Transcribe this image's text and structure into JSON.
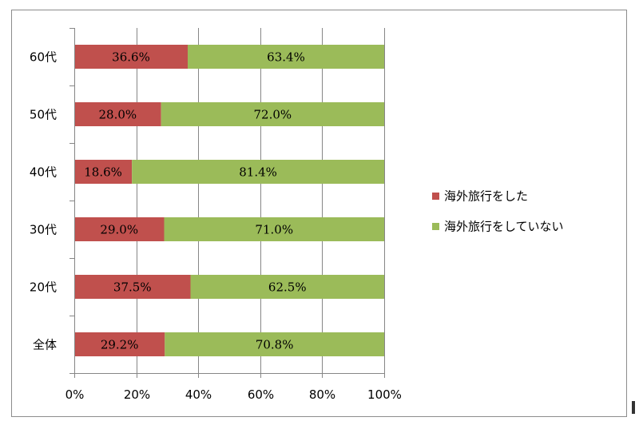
{
  "chart_data": {
    "type": "bar",
    "orientation": "horizontal",
    "stacked": "percent",
    "categories": [
      "60代",
      "50代",
      "40代",
      "30代",
      "20代",
      "全体"
    ],
    "series": [
      {
        "name": "海外旅行をした",
        "color": "#c0504d",
        "values": [
          36.6,
          28.0,
          18.6,
          29.0,
          37.5,
          29.2
        ],
        "labels": [
          "36.6%",
          "28.0%",
          "18.6%",
          "29.0%",
          "37.5%",
          "29.2%"
        ]
      },
      {
        "name": "海外旅行をしていない",
        "color": "#9bbb59",
        "values": [
          63.4,
          72.0,
          81.4,
          71.0,
          62.5,
          70.8
        ],
        "labels": [
          "63.4%",
          "72.0%",
          "81.4%",
          "71.0%",
          "62.5%",
          "70.8%"
        ]
      }
    ],
    "xlim": [
      0,
      100
    ],
    "x_ticks": [
      0,
      20,
      40,
      60,
      80,
      100
    ],
    "x_tick_labels": [
      "0%",
      "20%",
      "40%",
      "60%",
      "80%",
      "100%"
    ],
    "grid": "vertical",
    "legend_position": "right",
    "gridline_color": "#868686"
  }
}
